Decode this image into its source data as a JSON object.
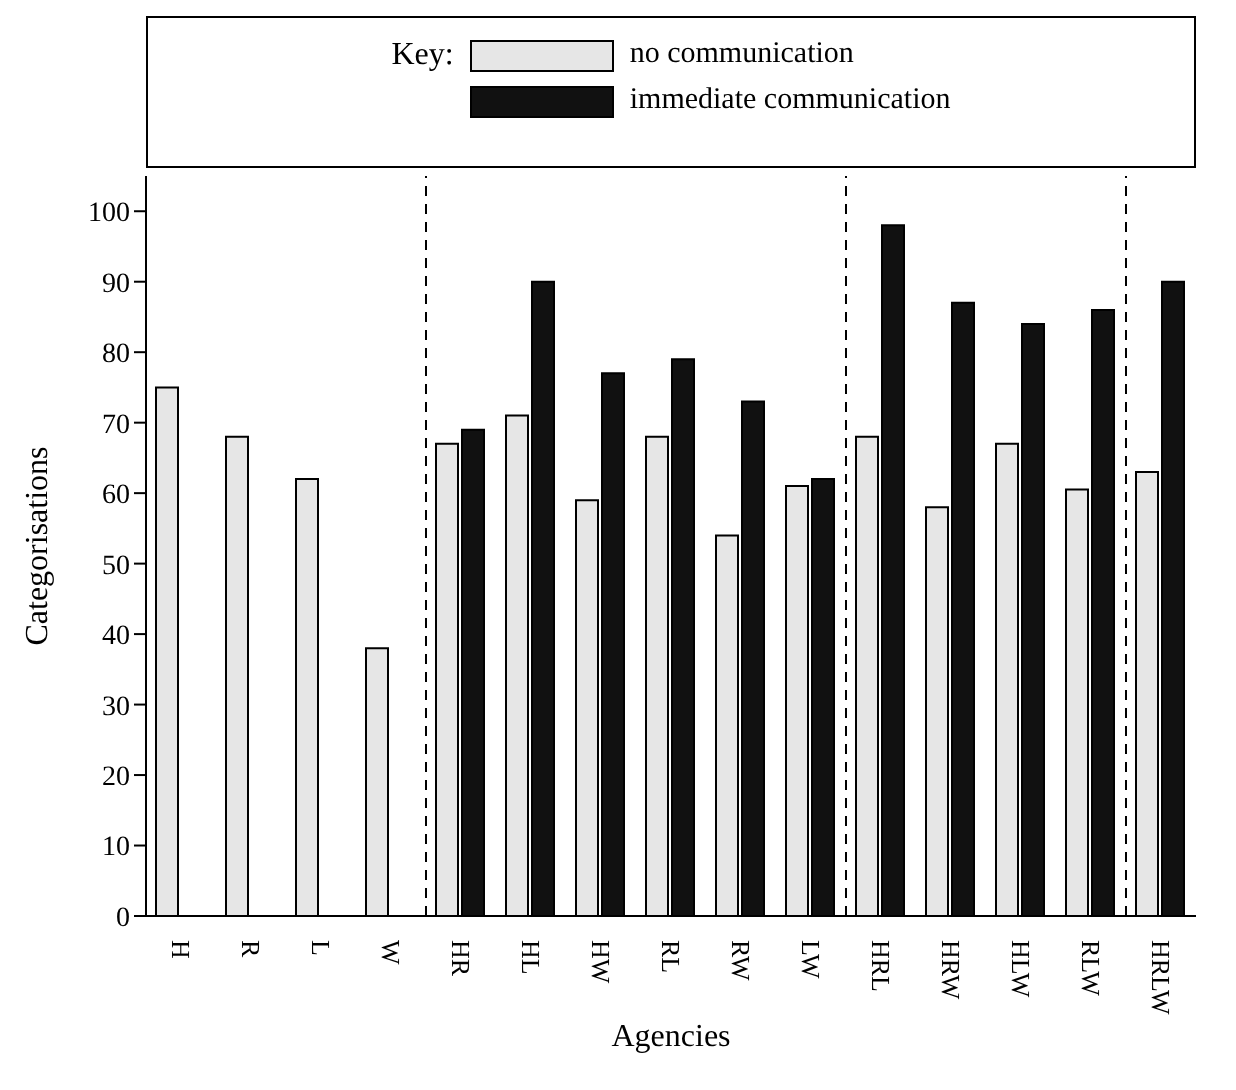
{
  "chart_data": {
    "type": "bar",
    "xlabel": "Agencies",
    "ylabel": "Categorisations",
    "legend_title": "Key:",
    "legend": "top",
    "categories": [
      "H",
      "R",
      "L",
      "W",
      "HR",
      "HL",
      "HW",
      "RL",
      "RW",
      "LW",
      "HRL",
      "HRW",
      "HLW",
      "RLW",
      "HRLW"
    ],
    "series": [
      {
        "name": "no communication",
        "color": "#e6e6e6",
        "values": [
          75,
          68,
          62,
          38,
          67,
          71,
          59,
          68,
          54,
          61,
          68,
          58,
          67,
          60.5,
          63
        ]
      },
      {
        "name": "immediate communication",
        "color": "#111111",
        "values": [
          null,
          null,
          null,
          null,
          69,
          90,
          77,
          79,
          73,
          62,
          98,
          87,
          84,
          86,
          90
        ]
      }
    ],
    "ylim": [
      0,
      105
    ],
    "yticks": [
      0,
      10,
      20,
      30,
      40,
      50,
      60,
      70,
      80,
      90,
      100
    ]
  }
}
